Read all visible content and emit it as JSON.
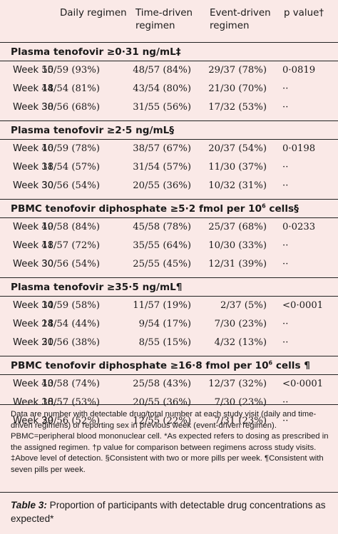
{
  "header": {
    "col1": "Daily regimen",
    "col2": "Time-driven regimen",
    "col3": "Event-driven regimen",
    "col4": "p value†"
  },
  "sections": [
    {
      "title": "Plasma tenofovir ≥0·31 ng/mL‡",
      "title_sup": "",
      "title_tail": "",
      "rows": [
        {
          "label": "Week 10",
          "daily": "55/59 (93%)",
          "time": "48/57 (84%)",
          "event": "29/37 (78%)",
          "p": "0·0819"
        },
        {
          "label": "Week 18",
          "daily": "44/54 (81%)",
          "time": "43/54 (80%)",
          "event": "21/30 (70%)",
          "p": "··"
        },
        {
          "label": "Week 30",
          "daily": "38/56 (68%)",
          "time": "31/55 (56%)",
          "event": "17/32 (53%)",
          "p": "··"
        }
      ]
    },
    {
      "title": "Plasma tenofovir ≥2·5 ng/mL§",
      "title_sup": "",
      "title_tail": "",
      "rows": [
        {
          "label": "Week 10",
          "daily": "46/59 (78%)",
          "time": "38/57 (67%)",
          "event": "20/37 (54%)",
          "p": "0·0198"
        },
        {
          "label": "Week 18",
          "daily": "31/54 (57%)",
          "time": "31/54 (57%)",
          "event": "11/30 (37%)",
          "p": "··"
        },
        {
          "label": "Week 30",
          "daily": "30/56 (54%)",
          "time": "20/55 (36%)",
          "event": "10/32 (31%)",
          "p": "··"
        }
      ]
    },
    {
      "title": "PBMC tenofovir diphosphate ≥5·2 fmol per 10",
      "title_sup": "6",
      "title_tail": " cells§",
      "rows": [
        {
          "label": "Week 10",
          "daily": "49/58 (84%)",
          "time": "45/58 (78%)",
          "event": "25/37 (68%)",
          "p": "0·0233"
        },
        {
          "label": "Week 18",
          "daily": "41/57 (72%)",
          "time": "35/55 (64%)",
          "event": "10/30 (33%)",
          "p": "··"
        },
        {
          "label": "Week 30",
          "daily": "30/56 (54%)",
          "time": "25/55 (45%)",
          "event": "12/31 (39%)",
          "p": "··"
        }
      ]
    },
    {
      "title": "Plasma tenofovir ≥35·5 ng/mL¶",
      "title_sup": "",
      "title_tail": "",
      "rows": [
        {
          "label": "Week 10",
          "daily": "34/59 (58%)",
          "time": "11/57 (19%)",
          "event": "2/37 (5%)",
          "p": "<0·0001"
        },
        {
          "label": "Week 18",
          "daily": "24/54 (44%)",
          "time": "9/54 (17%)",
          "event": "7/30 (23%)",
          "p": "··"
        },
        {
          "label": "Week 30",
          "daily": "21/56 (38%)",
          "time": "8/55 (15%)",
          "event": "4/32 (13%)",
          "p": "··"
        }
      ]
    },
    {
      "title": "PBMC tenofovir diphosphate ≥16·8 fmol per 10",
      "title_sup": "6",
      "title_tail": " cells ¶",
      "rows": [
        {
          "label": "Week 10",
          "daily": "43/58 (74%)",
          "time": "25/58 (43%)",
          "event": "12/37 (32%)",
          "p": "<0·0001"
        },
        {
          "label": "Week 18",
          "daily": "30/57 (53%)",
          "time": "20/55 (36%)",
          "event": "7/30 (23%)",
          "p": "··"
        },
        {
          "label": "Week 30",
          "daily": "29/56 (52%)",
          "time": "12/55 (22%)",
          "event": "7/31 (23%)",
          "p": "··"
        }
      ]
    }
  ],
  "footnote": "Data are number with detectable drug/total number at each study visit (daily and time-driven regimens) or reporting sex in previous week (event-driven regimen). PBMC=peripheral blood mononuclear cell. *As expected refers to dosing as prescribed in the assigned regimen. †p value for comparison between regimens across study visits. ‡Above level of detection. §Consistent with two or more pills per week. ¶Consistent with seven pills per week.",
  "caption": {
    "label": "Table 3:",
    "text": " Proportion of participants with detectable drug concentrations as expected*"
  }
}
